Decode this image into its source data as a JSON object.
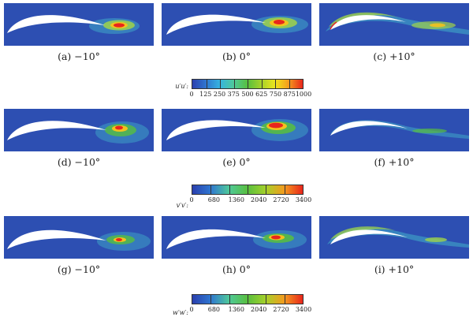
{
  "rows": [
    {
      "panels": [
        {
          "caption": "(a) −10°"
        },
        {
          "caption": "(b) 0°"
        },
        {
          "caption": "(c) +10°"
        }
      ],
      "colorbar": {
        "label": "u′u′:",
        "ticks": [
          "0",
          "125",
          "250",
          "375",
          "500",
          "625",
          "750",
          "875",
          "1000"
        ],
        "levels": 8
      }
    },
    {
      "panels": [
        {
          "caption": "(d) −10°"
        },
        {
          "caption": "(e) 0°"
        },
        {
          "caption": "(f) +10°"
        }
      ],
      "colorbar": {
        "label": "v′v′:",
        "ticks": [
          "0",
          "680",
          "1360",
          "2040",
          "2720",
          "3400"
        ],
        "levels": 6
      }
    },
    {
      "panels": [
        {
          "caption": "(g) −10°"
        },
        {
          "caption": "(h) 0°"
        },
        {
          "caption": "(i) +10°"
        }
      ],
      "colorbar": {
        "label": "w′w′:",
        "ticks": [
          "0",
          "680",
          "1360",
          "2040",
          "2720",
          "3400"
        ],
        "levels": 6
      }
    }
  ],
  "colormap": [
    "#2a3fae",
    "#2f77d0",
    "#35b4e0",
    "#4fc99a",
    "#58bf3e",
    "#a6d12a",
    "#eee51c",
    "#f49a1e",
    "#e8261c"
  ],
  "background_color": "#2d4fb2"
}
